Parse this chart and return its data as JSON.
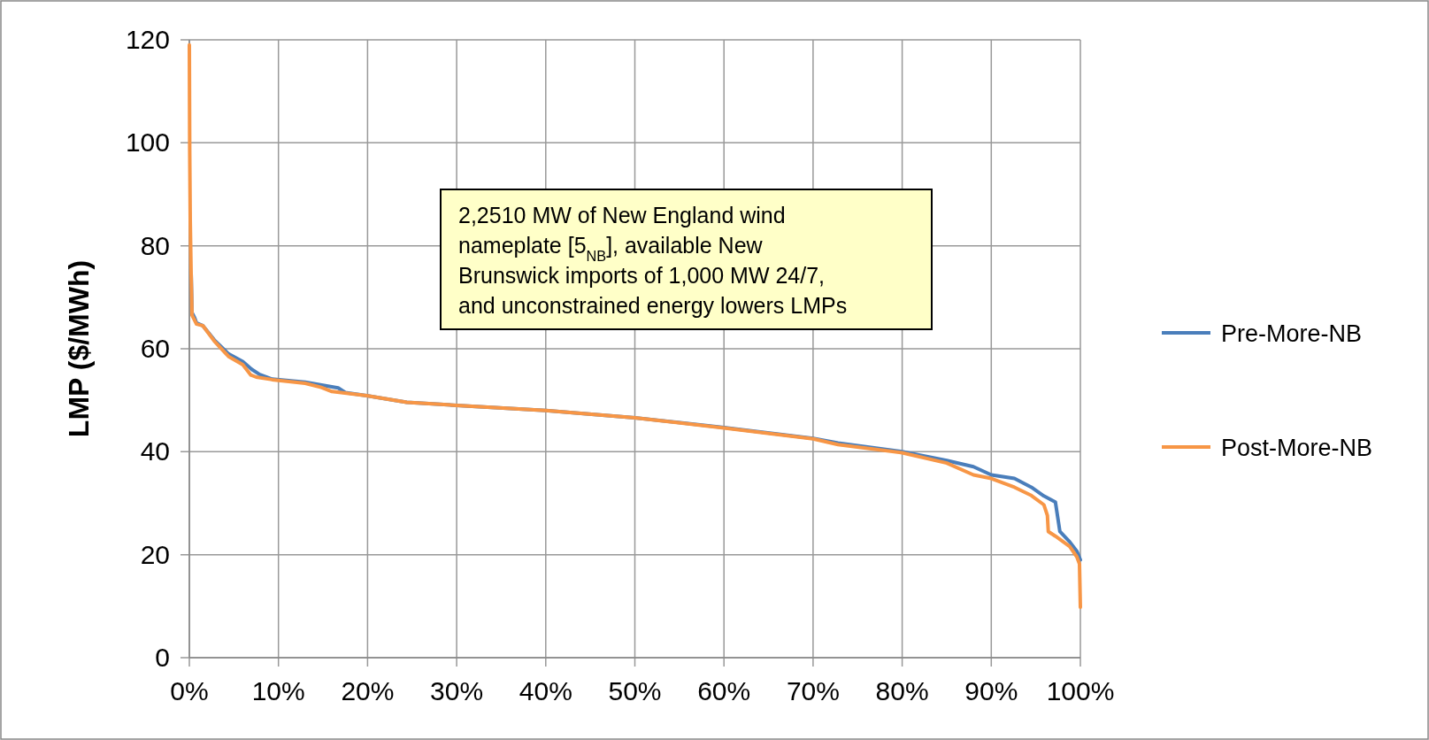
{
  "chart_data": {
    "type": "line",
    "ylabel": "LMP ($/MWh)",
    "xlim": [
      0,
      100
    ],
    "ylim": [
      0,
      120
    ],
    "xticks": [
      {
        "value": 0,
        "label": "0%"
      },
      {
        "value": 10,
        "label": "10%"
      },
      {
        "value": 20,
        "label": "20%"
      },
      {
        "value": 30,
        "label": "30%"
      },
      {
        "value": 40,
        "label": "40%"
      },
      {
        "value": 50,
        "label": "50%"
      },
      {
        "value": 60,
        "label": "60%"
      },
      {
        "value": 70,
        "label": "70%"
      },
      {
        "value": 80,
        "label": "80%"
      },
      {
        "value": 90,
        "label": "90%"
      },
      {
        "value": 100,
        "label": "100%"
      }
    ],
    "yticks": [
      0,
      20,
      40,
      60,
      80,
      100,
      120
    ],
    "grid": true,
    "legend": "right",
    "marker": "none",
    "line_style": "solid",
    "annotations": [
      "2,2510 MW of New England wind nameplate [5$_{NB}$], available New Brunswick imports of 1,000 MW 24/7, and unconstrained energy lowers LMPs"
    ],
    "series": [
      {
        "name": "Pre-More-NB",
        "color": "#4a7ebb",
        "x": [
          0.2,
          0.3,
          0.6,
          0.8,
          1.5,
          2.8,
          4.4,
          6,
          7,
          7.9,
          9.3,
          13,
          16.7,
          17.5,
          19.9,
          24.4,
          30,
          40,
          50,
          60,
          70,
          72.8,
          80,
          85,
          88,
          90,
          92.6,
          94.5,
          95.9,
          97.2,
          97.7,
          98.8,
          99.6,
          100
        ],
        "values": [
          74.5,
          67,
          66,
          65,
          64.5,
          61.7,
          59,
          57.5,
          56,
          55,
          54.1,
          53.5,
          52.4,
          51.5,
          50.9,
          49.6,
          49,
          48,
          46.6,
          44.7,
          42.6,
          41.7,
          40,
          38.3,
          37.1,
          35.5,
          34.8,
          33.1,
          31.4,
          30.2,
          24.5,
          22.5,
          20.7,
          19
        ]
      },
      {
        "name": "Post-More-NB",
        "color": "#f79646",
        "x": [
          0,
          0.04,
          0.1,
          0.2,
          0.3,
          0.6,
          0.8,
          1.5,
          2.8,
          4.4,
          6,
          6.9,
          7.5,
          9.3,
          13,
          14.8,
          16,
          19.9,
          24.4,
          30,
          40,
          50,
          60,
          70,
          72.8,
          80,
          85,
          88,
          90,
          92.6,
          94.5,
          95.9,
          96.3,
          96.4,
          97.2,
          98.8,
          99.6,
          99.9,
          100
        ],
        "values": [
          119,
          98.6,
          85,
          74.5,
          66.5,
          65.5,
          64.8,
          64.5,
          61.5,
          58.5,
          56.9,
          54.9,
          54.5,
          54,
          53.3,
          52.5,
          51.7,
          50.9,
          49.6,
          49,
          48,
          46.6,
          44.6,
          42.5,
          41.4,
          39.8,
          37.8,
          35.5,
          34.8,
          33.1,
          31.5,
          29.7,
          27.6,
          24.5,
          23.6,
          21.6,
          19.6,
          18.2,
          9.8
        ]
      }
    ]
  }
}
